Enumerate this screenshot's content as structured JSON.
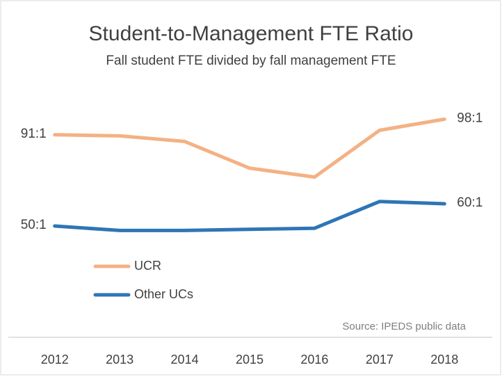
{
  "chart_data": {
    "type": "line",
    "title": "Student-to-Management FTE Ratio",
    "subtitle": "Fall student FTE divided by fall management FTE",
    "annotation": "Source: IPEDS public data",
    "categories": [
      "2012",
      "2013",
      "2014",
      "2015",
      "2016",
      "2017",
      "2018"
    ],
    "series": [
      {
        "name": "UCR",
        "color": "#f4b183",
        "values": [
          91,
          90.5,
          88,
          76,
          72,
          93,
          98
        ],
        "value_labels": [
          "91:1",
          null,
          null,
          null,
          null,
          null,
          "98:1"
        ]
      },
      {
        "name": "Other UCs",
        "color": "#2e75b6",
        "values": [
          50,
          48,
          48,
          48.5,
          49,
          61,
          60
        ],
        "value_labels": [
          "50:1",
          null,
          null,
          null,
          null,
          null,
          "60:1"
        ]
      }
    ],
    "ylim": [
      0,
      110
    ],
    "legend": "bottom-left"
  }
}
